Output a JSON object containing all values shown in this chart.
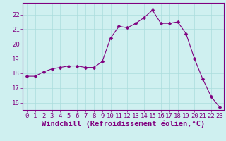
{
  "x": [
    0,
    1,
    2,
    3,
    4,
    5,
    6,
    7,
    8,
    9,
    10,
    11,
    12,
    13,
    14,
    15,
    16,
    17,
    18,
    19,
    20,
    21,
    22,
    23
  ],
  "y": [
    17.8,
    17.8,
    18.1,
    18.3,
    18.4,
    18.5,
    18.5,
    18.4,
    18.4,
    18.8,
    20.4,
    21.2,
    21.1,
    21.4,
    21.8,
    22.3,
    21.4,
    21.4,
    21.5,
    20.7,
    19.0,
    17.6,
    16.4,
    15.7
  ],
  "line_color": "#800080",
  "marker": "D",
  "marker_size": 2.5,
  "bg_color": "#cff0f0",
  "grid_color": "#aadddd",
  "xlabel": "Windchill (Refroidissement éolien,°C)",
  "xlabel_fontsize": 7.5,
  "tick_color": "#800080",
  "tick_fontsize": 6.5,
  "ylim": [
    15.5,
    22.8
  ],
  "xlim": [
    -0.5,
    23.5
  ],
  "yticks": [
    16,
    17,
    18,
    19,
    20,
    21,
    22
  ],
  "xticks": [
    0,
    1,
    2,
    3,
    4,
    5,
    6,
    7,
    8,
    9,
    10,
    11,
    12,
    13,
    14,
    15,
    16,
    17,
    18,
    19,
    20,
    21,
    22,
    23
  ]
}
